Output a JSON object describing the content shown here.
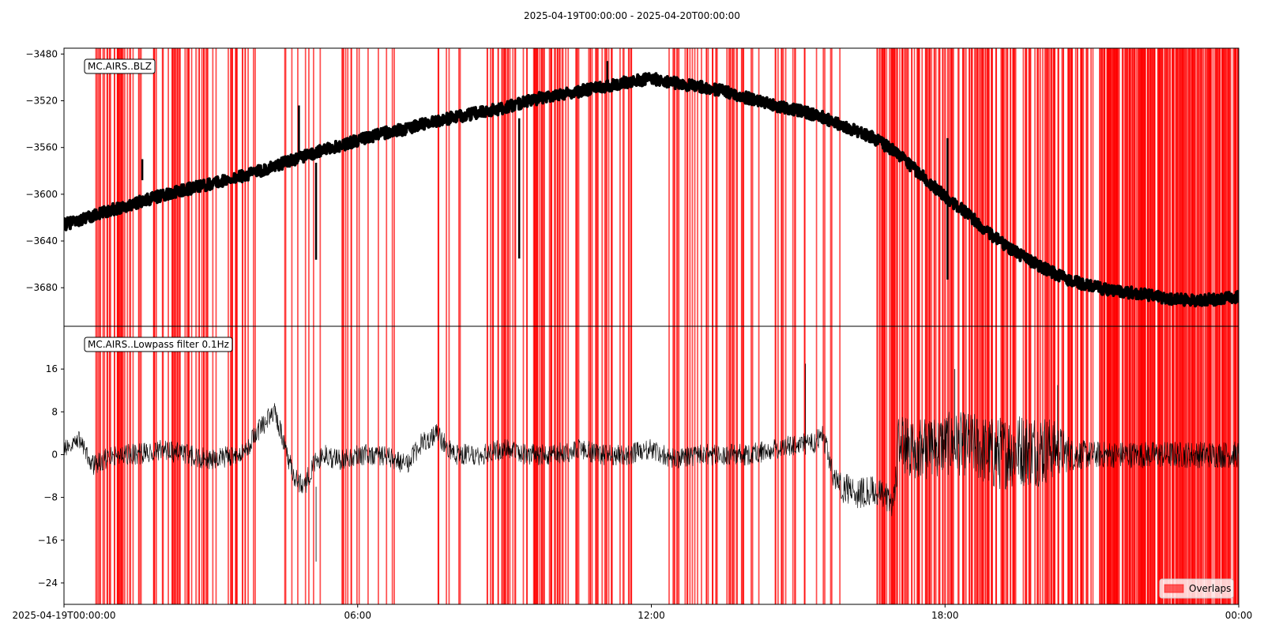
{
  "chart_data": {
    "type": "line",
    "title": "2025-04-19T00:00:00  -  2025-04-20T00:00:00",
    "x_axis": {
      "unit": "hours since 2025-04-19T00:00:00",
      "range": [
        0,
        24
      ],
      "tick_values": [
        0,
        6,
        12,
        18,
        24
      ],
      "tick_labels": [
        "2025-04-19T00:00:00",
        "06:00",
        "12:00",
        "18:00",
        "00:00"
      ]
    },
    "legend": {
      "label": "Overlaps",
      "placement": "lower-right",
      "color": "#ff0000"
    },
    "colors": {
      "overlap": "#ff0000",
      "trace": "#000000"
    },
    "panels": [
      {
        "label": "MC.AIRS..BLZ",
        "ylim": [
          -3713,
          -3475
        ],
        "yticks": [
          -3480,
          -3520,
          -3560,
          -3600,
          -3640,
          -3680
        ],
        "ytick_labels": [
          "−3480",
          "−3520",
          "−3560",
          "−3600",
          "−3640",
          "−3680"
        ],
        "line_width": 4,
        "series": [
          {
            "x": [
              0,
              0.5,
              1,
              1.5,
              2,
              2.5,
              3,
              3.5,
              4,
              4.5,
              5,
              5.5,
              6,
              6.5,
              7,
              7.5,
              8,
              8.5,
              9,
              9.5,
              10,
              10.5,
              11,
              11.5,
              12,
              12.5,
              13,
              13.5,
              14,
              14.5,
              15,
              15.5,
              16,
              16.5,
              17,
              17.5,
              18,
              18.5,
              19,
              19.5,
              20,
              20.5,
              21,
              21.5,
              22,
              22.5,
              23,
              23.5,
              24
            ],
            "y": [
              -3626,
              -3620,
              -3613,
              -3607,
              -3601,
              -3596,
              -3591,
              -3586,
              -3580,
              -3573,
              -3566,
              -3560,
              -3554,
              -3548,
              -3544,
              -3538,
              -3534,
              -3530,
              -3526,
              -3520,
              -3515,
              -3512,
              -3508,
              -3504,
              -3501,
              -3505,
              -3508,
              -3512,
              -3518,
              -3524,
              -3528,
              -3534,
              -3543,
              -3551,
              -3564,
              -3583,
              -3602,
              -3618,
              -3637,
              -3651,
              -3663,
              -3673,
              -3679,
              -3683,
              -3685,
              -3689,
              -3691,
              -3690,
              -3688
            ],
            "noise": 5
          }
        ],
        "spikes": [
          {
            "x": 1.6,
            "y1": -3570,
            "y2": -3588
          },
          {
            "x": 4.8,
            "y1": -3524,
            "y2": -3570
          },
          {
            "x": 5.15,
            "y1": -3573,
            "y2": -3656
          },
          {
            "x": 9.3,
            "y1": -3535,
            "y2": -3655
          },
          {
            "x": 11.1,
            "y1": -3486,
            "y2": -3510
          },
          {
            "x": 18.05,
            "y1": -3552,
            "y2": -3673
          }
        ]
      },
      {
        "label": "MC.AIRS..Lowpass filter 0.1Hz",
        "ylim": [
          -28,
          24
        ],
        "yticks": [
          16,
          8,
          0,
          -8,
          -16,
          -24
        ],
        "ytick_labels": [
          "16",
          "8",
          "0",
          "−8",
          "−16",
          "−24"
        ],
        "line_width": 0.6,
        "series": [
          {
            "x": [
              0,
              0.3,
              0.6,
              1,
              1.5,
              2,
              2.5,
              3,
              3.5,
              3.8,
              4,
              4.3,
              4.5,
              4.7,
              4.9,
              5.1,
              5.3,
              5.6,
              6,
              6.5,
              7,
              7.3,
              7.6,
              8,
              8.5,
              9,
              9.5,
              10,
              10.5,
              11,
              11.5,
              12,
              12.5,
              13,
              13.5,
              14,
              14.5,
              15,
              15.3,
              15.5,
              15.7,
              15.9,
              16.2,
              16.6,
              16.95,
              17.05,
              17.5,
              18,
              18.5,
              19,
              19.5,
              20,
              20.3,
              20.6,
              21,
              21.5,
              22,
              22.5,
              23,
              23.5,
              24
            ],
            "y": [
              1,
              3,
              -2,
              0,
              0,
              1,
              0,
              -1,
              0,
              2,
              5,
              8,
              2,
              -4,
              -6,
              -2,
              0,
              -1,
              0,
              0,
              -2,
              2,
              4,
              0,
              0,
              1,
              0,
              0,
              1,
              0,
              0,
              1,
              -1,
              0,
              0,
              0,
              1,
              2,
              2,
              4,
              -4,
              -6,
              -7,
              -7,
              -9,
              2,
              1,
              2,
              2,
              0,
              1,
              1,
              1,
              0,
              0,
              0,
              0,
              0,
              0,
              0,
              0
            ],
            "noise": [
              1.5,
              1.5,
              2,
              2,
              2,
              2,
              2,
              2,
              2,
              2,
              2,
              2,
              2,
              2,
              2,
              2,
              2,
              2,
              2,
              2,
              2,
              2,
              2,
              2,
              2,
              2,
              2,
              2,
              2,
              2,
              2,
              2,
              2,
              2,
              2,
              2,
              2,
              2,
              2,
              2,
              2.5,
              3,
              3,
              3,
              3,
              5,
              6,
              6,
              6,
              7,
              7,
              7,
              5,
              3,
              2.5,
              2.5,
              2.5,
              2.5,
              2.5,
              2.5,
              2.5
            ]
          }
        ],
        "spikes": [
          {
            "x": 15.15,
            "y1": 0,
            "y2": 17
          },
          {
            "x": 5.15,
            "y1": -6,
            "y2": -20
          },
          {
            "x": 18.2,
            "y1": 0,
            "y2": 16
          },
          {
            "x": 20.3,
            "y1": 2,
            "y2": 13
          }
        ]
      }
    ],
    "overlaps": [
      {
        "range": [
          0.6,
          1.6
        ],
        "n": 34,
        "width": 0.03
      },
      {
        "range": [
          1.45,
          1.55
        ],
        "n": 1,
        "width": 0.1
      },
      {
        "range": [
          1.75,
          3.0
        ],
        "n": 32,
        "width": 0.025
      },
      {
        "range": [
          2.5,
          2.75
        ],
        "n": 2,
        "width": 0.12
      },
      {
        "range": [
          3.0,
          3.9
        ],
        "n": 18,
        "width": 0.02
      },
      {
        "range": [
          4.5,
          5.3
        ],
        "n": 8,
        "width": 0.02
      },
      {
        "range": [
          5.6,
          6.9
        ],
        "n": 14,
        "width": 0.02
      },
      {
        "range": [
          7.6,
          8.1
        ],
        "n": 6,
        "width": 0.02
      },
      {
        "range": [
          8.6,
          9.8
        ],
        "n": 30,
        "width": 0.03
      },
      {
        "range": [
          9.6,
          11.6
        ],
        "n": 52,
        "width": 0.035
      },
      {
        "range": [
          12.3,
          13.4
        ],
        "n": 24,
        "width": 0.03
      },
      {
        "range": [
          13.5,
          14.2
        ],
        "n": 16,
        "width": 0.03
      },
      {
        "range": [
          14.5,
          14.95
        ],
        "n": 10,
        "width": 0.02
      },
      {
        "range": [
          15.1,
          15.85
        ],
        "n": 8,
        "width": 0.02
      },
      {
        "range": [
          16.55,
          17.0
        ],
        "n": 12,
        "width": 0.05
      },
      {
        "range": [
          16.6,
          20.5
        ],
        "n": 140,
        "width": 0.035
      },
      {
        "range": [
          18.6,
          18.8
        ],
        "n": 4,
        "width": 0.06
      },
      {
        "range": [
          20.5,
          24.0
        ],
        "n": 160,
        "width": 0.035
      },
      {
        "range": [
          21.2,
          24.0
        ],
        "n": 90,
        "width": 0.05
      }
    ]
  }
}
